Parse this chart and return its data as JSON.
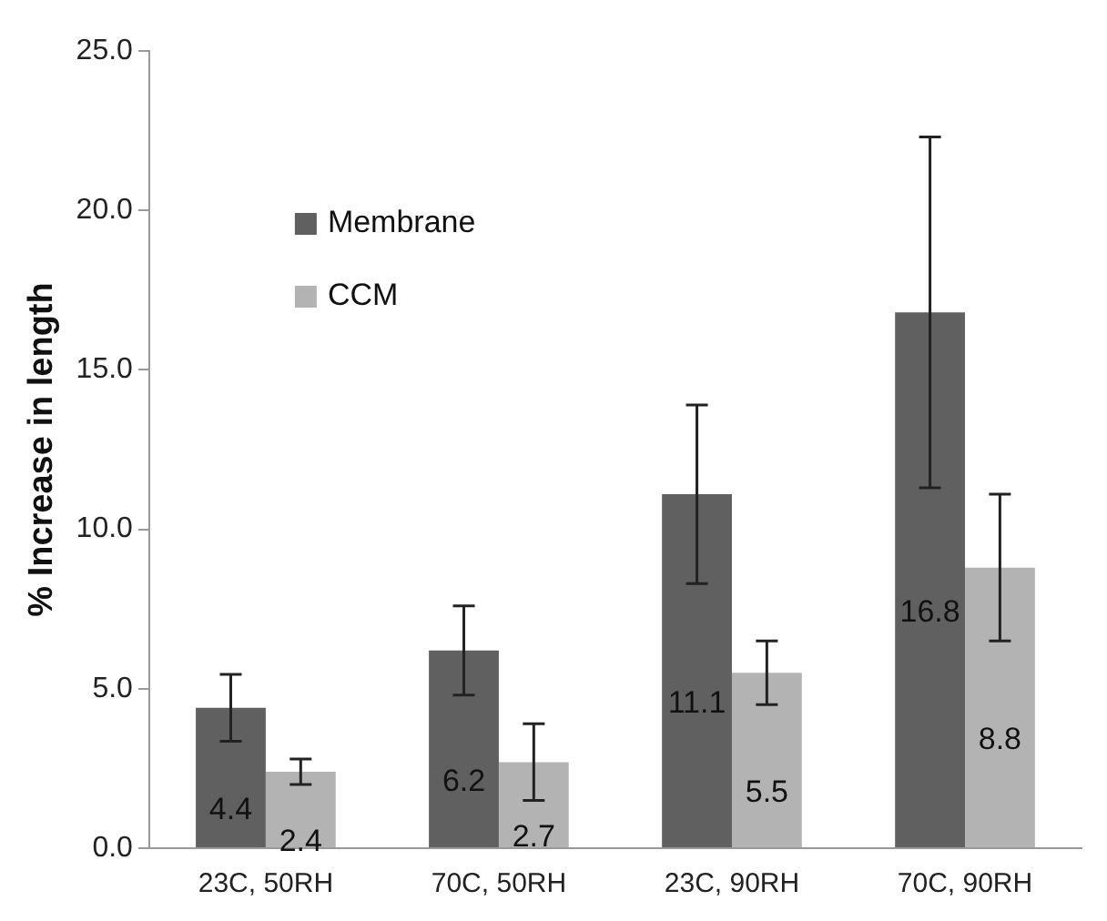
{
  "chart_data": {
    "type": "bar",
    "ylabel": "% Increase in length",
    "categories": [
      "23C, 50RH",
      "70C, 50RH",
      "23C, 90RH",
      "70C, 90RH"
    ],
    "series": [
      {
        "name": "Membrane",
        "color": "#606060",
        "values": [
          4.4,
          6.2,
          11.1,
          16.8
        ],
        "errors": [
          1.05,
          1.4,
          2.8,
          5.5
        ]
      },
      {
        "name": "CCM",
        "color": "#b3b3b3",
        "values": [
          2.4,
          2.7,
          5.5,
          8.8
        ],
        "errors": [
          0.4,
          1.2,
          1.0,
          2.3
        ]
      }
    ],
    "ylim": [
      0,
      25
    ],
    "yticks": [
      {
        "value": 0,
        "label": "0.0"
      },
      {
        "value": 5,
        "label": "5.0"
      },
      {
        "value": 10,
        "label": "10.0"
      },
      {
        "value": 15,
        "label": "15.0"
      },
      {
        "value": 20,
        "label": "20.0"
      },
      {
        "value": 25,
        "label": "25.0"
      }
    ],
    "data_labels": true,
    "legend": "top left"
  }
}
